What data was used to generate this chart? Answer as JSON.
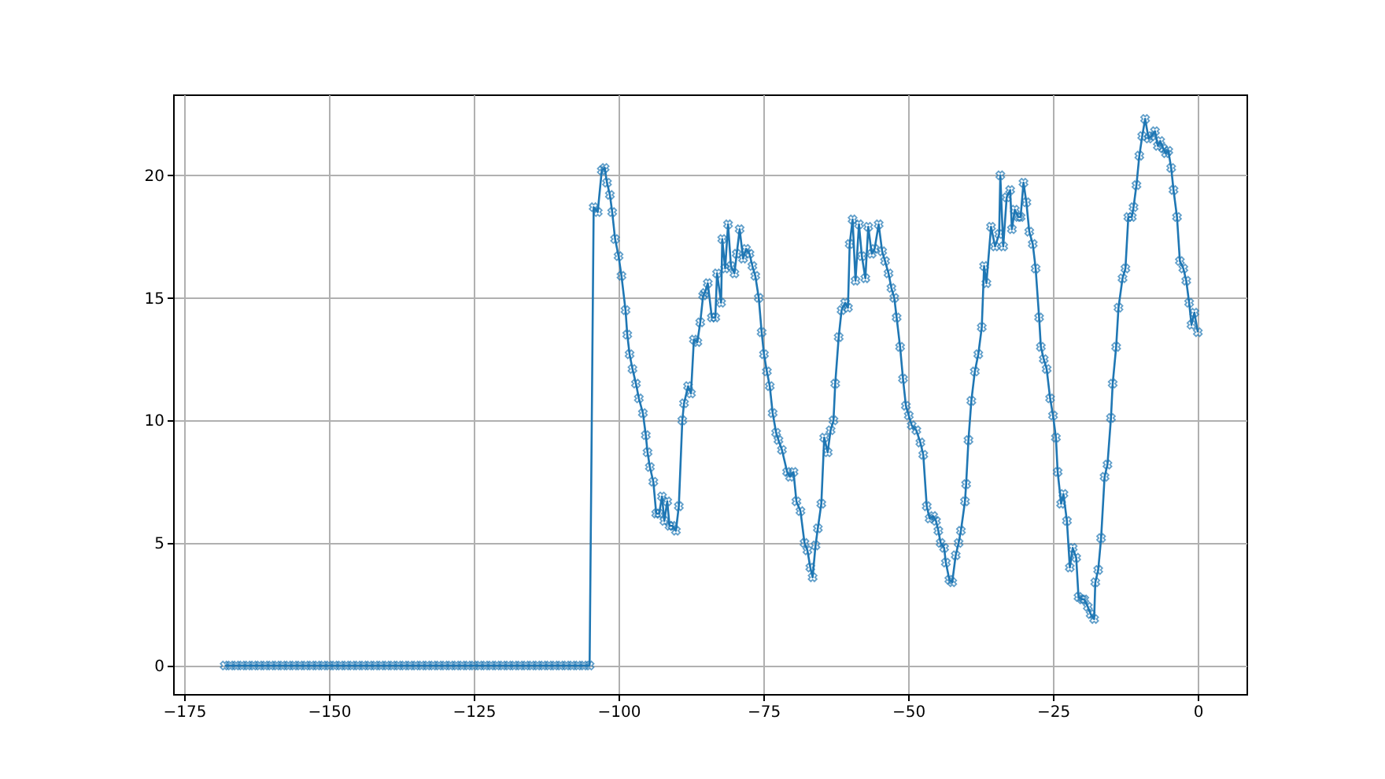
{
  "chart_data": {
    "type": "line",
    "x": [
      -168,
      -167,
      -166,
      -165,
      -164,
      -163,
      -162,
      -161,
      -160,
      -159,
      -158,
      -157,
      -156,
      -155,
      -154,
      -153,
      -152,
      -151,
      -150,
      -149,
      -148,
      -147,
      -146,
      -145,
      -144,
      -143,
      -142,
      -141,
      -140,
      -139,
      -138,
      -137,
      -136,
      -135,
      -134,
      -133,
      -132,
      -131,
      -130,
      -129,
      -128,
      -127,
      -126,
      -125,
      -124,
      -123,
      -122,
      -121,
      -120,
      -119,
      -118,
      -117,
      -116,
      -115,
      -114,
      -113,
      -112,
      -111,
      -110,
      -109,
      -108,
      -107,
      -106,
      -105,
      -104.3,
      -103.6,
      -102.9,
      -102.4,
      -102,
      -101.5,
      -101.1,
      -100.6,
      -100,
      -99.5,
      -98.8,
      -98.5,
      -98.1,
      -97.6,
      -97,
      -96.5,
      -95.8,
      -95.3,
      -95,
      -94.6,
      -94,
      -93.5,
      -93,
      -92.5,
      -92.1,
      -91.6,
      -91.2,
      -90.7,
      -90.1,
      -89.6,
      -89,
      -88.7,
      -88,
      -87.5,
      -87,
      -86.4,
      -85.9,
      -85.4,
      -85.1,
      -84.6,
      -83.9,
      -83.3,
      -83,
      -82.3,
      -82.1,
      -81.6,
      -81.1,
      -80.6,
      -80,
      -79.6,
      -79.1,
      -78.5,
      -78,
      -77.4,
      -76.9,
      -76.4,
      -75.8,
      -75.3,
      -74.9,
      -74.4,
      -73.9,
      -73.4,
      -72.8,
      -72.4,
      -71.8,
      -70.9,
      -70.4,
      -69.8,
      -69.3,
      -68.6,
      -67.9,
      -67.4,
      -66.9,
      -66.5,
      -66,
      -65.6,
      -65,
      -64.5,
      -63.9,
      -63.4,
      -62.9,
      -62.6,
      -62,
      -61.5,
      -60.9,
      -60.4,
      -60.1,
      -59.6,
      -59.1,
      -58.5,
      -58,
      -57.4,
      -56.9,
      -56.3,
      -55.8,
      -55.1,
      -54.5,
      -54,
      -53.4,
      -52.9,
      -52.4,
      -52,
      -51.4,
      -50.9,
      -50.4,
      -49.9,
      -49.4,
      -48.6,
      -47.9,
      -47.4,
      -46.8,
      -46.3,
      -45.7,
      -45.2,
      -44.8,
      -44.4,
      -43.8,
      -43.5,
      -42.9,
      -42.4,
      -41.8,
      -41.3,
      -40.9,
      -40.2,
      -40,
      -39.6,
      -39.1,
      -38.5,
      -37.9,
      -37.3,
      -36.9,
      -36.5,
      -35.7,
      -35,
      -34.3,
      -34.1,
      -33.6,
      -33,
      -32.4,
      -32.1,
      -31.6,
      -31,
      -30.6,
      -30.1,
      -29.6,
      -29.1,
      -28.5,
      -28,
      -27.4,
      -27.1,
      -26.6,
      -26.1,
      -25.5,
      -25,
      -24.5,
      -24.2,
      -23.6,
      -23.2,
      -22.6,
      -22.1,
      -21.6,
      -21,
      -20.6,
      -20,
      -19.6,
      -19,
      -18.5,
      -17.9,
      -17.7,
      -17.2,
      -16.7,
      -16.1,
      -15.6,
      -15,
      -14.7,
      -14.1,
      -13.7,
      -13,
      -12.5,
      -12,
      -11.4,
      -11.1,
      -10.6,
      -10.1,
      -9.6,
      -9.1,
      -8.5,
      -8,
      -7.4,
      -6.9,
      -6.5,
      -6,
      -5.5,
      -5.1,
      -4.6,
      -4.2,
      -3.6,
      -3.1,
      -2.5,
      -2,
      -1.5,
      -1.1,
      -0.6,
      0
    ],
    "series": [
      {
        "color": "#1f77b4",
        "values": [
          0,
          0,
          0,
          0,
          0,
          0,
          0,
          0,
          0,
          0,
          0,
          0,
          0,
          0,
          0,
          0,
          0,
          0,
          0,
          0,
          0,
          0,
          0,
          0,
          0,
          0,
          0,
          0,
          0,
          0,
          0,
          0,
          0,
          0,
          0,
          0,
          0,
          0,
          0,
          0,
          0,
          0,
          0,
          0,
          0,
          0,
          0,
          0,
          0,
          0,
          0,
          0,
          0,
          0,
          0,
          0,
          0,
          0,
          0,
          0,
          0,
          0,
          0,
          0,
          18.7,
          18.5,
          20.2,
          20.3,
          19.7,
          19.2,
          18.5,
          17.4,
          16.7,
          15.9,
          14.5,
          13.5,
          12.7,
          12.1,
          11.5,
          10.9,
          10.3,
          9.4,
          8.7,
          8.1,
          7.5,
          6.2,
          6.2,
          6.9,
          5.9,
          6.7,
          5.7,
          5.7,
          5.5,
          6.5,
          10.0,
          10.7,
          11.4,
          11.1,
          13.3,
          13.2,
          14,
          15.1,
          15.2,
          15.6,
          14.2,
          14.2,
          16,
          14.8,
          17.4,
          16.2,
          18,
          16.3,
          16,
          16.8,
          17.8,
          16.6,
          17,
          16.8,
          16.3,
          15.9,
          15,
          13.6,
          12.7,
          12,
          11.4,
          10.3,
          9.5,
          9.2,
          8.8,
          7.9,
          7.7,
          7.9,
          6.7,
          6.3,
          5.0,
          4.7,
          4.0,
          3.6,
          4.9,
          5.6,
          6.6,
          9.3,
          8.7,
          9.6,
          10,
          11.5,
          13.4,
          14.5,
          14.8,
          14.6,
          17.2,
          18.2,
          15.7,
          18,
          16.7,
          15.8,
          17.9,
          16.8,
          17,
          18,
          16.9,
          16.5,
          16,
          15.4,
          15,
          14.2,
          13,
          11.7,
          10.6,
          10.2,
          9.8,
          9.6,
          9.1,
          8.6,
          6.5,
          6.0,
          6.1,
          5.9,
          5.5,
          5.0,
          4.8,
          4.2,
          3.5,
          3.4,
          4.5,
          5.0,
          5.5,
          6.7,
          7.4,
          9.2,
          10.8,
          12,
          12.7,
          13.8,
          16.3,
          15.6,
          17.9,
          17.1,
          17.6,
          20.0,
          17.1,
          19.1,
          19.4,
          17.8,
          18.6,
          18.3,
          18.3,
          19.7,
          18.9,
          17.7,
          17.2,
          16.2,
          14.2,
          13,
          12.5,
          12.1,
          10.9,
          10.2,
          9.3,
          7.9,
          6.6,
          7.0,
          5.9,
          4.0,
          4.8,
          4.4,
          2.8,
          2.7,
          2.7,
          2.4,
          2.1,
          1.9,
          3.4,
          3.9,
          5.2,
          7.7,
          8.2,
          10.1,
          11.5,
          13.0,
          14.6,
          15.8,
          16.2,
          18.3,
          18.3,
          18.7,
          19.6,
          20.8,
          21.6,
          22.3,
          21.5,
          21.6,
          21.8,
          21.2,
          21.4,
          21.1,
          20.9,
          21,
          20.3,
          19.4,
          18.3,
          16.5,
          16.2,
          15.7,
          14.8,
          13.9,
          14.4,
          13.6
        ]
      }
    ],
    "xlim": [
      -176.9,
      8.4
    ],
    "ylim": [
      -1.16,
      23.3
    ],
    "xticks": [
      -175,
      -150,
      -125,
      -100,
      -75,
      -50,
      -25,
      0
    ],
    "yticks": [
      0,
      5,
      10,
      15,
      20
    ],
    "grid": true,
    "marker": "cross",
    "line_style": "solid"
  }
}
